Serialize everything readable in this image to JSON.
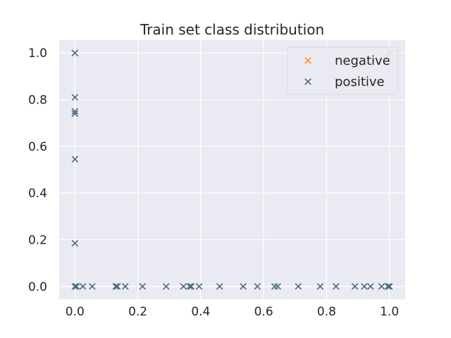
{
  "chart_data": {
    "type": "scatter",
    "title": "Train set class distribution",
    "xlabel": "",
    "ylabel": "",
    "xlim": [
      -0.05,
      1.05
    ],
    "ylim": [
      -0.055,
      1.055
    ],
    "xticks": [
      0.0,
      0.2,
      0.4,
      0.6,
      0.8,
      1.0
    ],
    "yticks": [
      0.0,
      0.2,
      0.4,
      0.6,
      0.8,
      1.0
    ],
    "xtick_labels": [
      "0.0",
      "0.2",
      "0.4",
      "0.6",
      "0.8",
      "1.0"
    ],
    "ytick_labels": [
      "0.0",
      "0.2",
      "0.4",
      "0.6",
      "0.8",
      "1.0"
    ],
    "grid": true,
    "legend_position": "top-right",
    "background": "#eaeaf2",
    "series": [
      {
        "name": "negative",
        "marker": "x",
        "color": "#ff8c1a",
        "points": [
          [
            0.0,
            1.0
          ],
          [
            1.0,
            1.0
          ]
        ]
      },
      {
        "name": "positive",
        "marker": "x",
        "color": "#4a6b82",
        "points": [
          [
            0.0,
            1.0
          ],
          [
            0.0,
            0.81
          ],
          [
            0.0,
            0.75
          ],
          [
            0.0,
            0.74
          ],
          [
            0.0,
            0.545
          ],
          [
            0.0,
            0.185
          ],
          [
            0.0,
            0.0
          ],
          [
            0.005,
            0.0
          ],
          [
            0.025,
            0.0
          ],
          [
            0.055,
            0.0
          ],
          [
            0.13,
            0.0
          ],
          [
            0.135,
            0.0
          ],
          [
            0.16,
            0.0
          ],
          [
            0.215,
            0.0
          ],
          [
            0.29,
            0.0
          ],
          [
            0.345,
            0.0
          ],
          [
            0.365,
            0.0
          ],
          [
            0.37,
            0.0
          ],
          [
            0.395,
            0.0
          ],
          [
            0.46,
            0.0
          ],
          [
            0.535,
            0.0
          ],
          [
            0.58,
            0.0
          ],
          [
            0.635,
            0.0
          ],
          [
            0.645,
            0.0
          ],
          [
            0.71,
            0.0
          ],
          [
            0.78,
            0.0
          ],
          [
            0.83,
            0.0
          ],
          [
            0.89,
            0.0
          ],
          [
            0.92,
            0.0
          ],
          [
            0.94,
            0.0
          ],
          [
            0.975,
            0.0
          ],
          [
            0.995,
            0.0
          ],
          [
            1.0,
            0.0
          ]
        ]
      }
    ]
  }
}
